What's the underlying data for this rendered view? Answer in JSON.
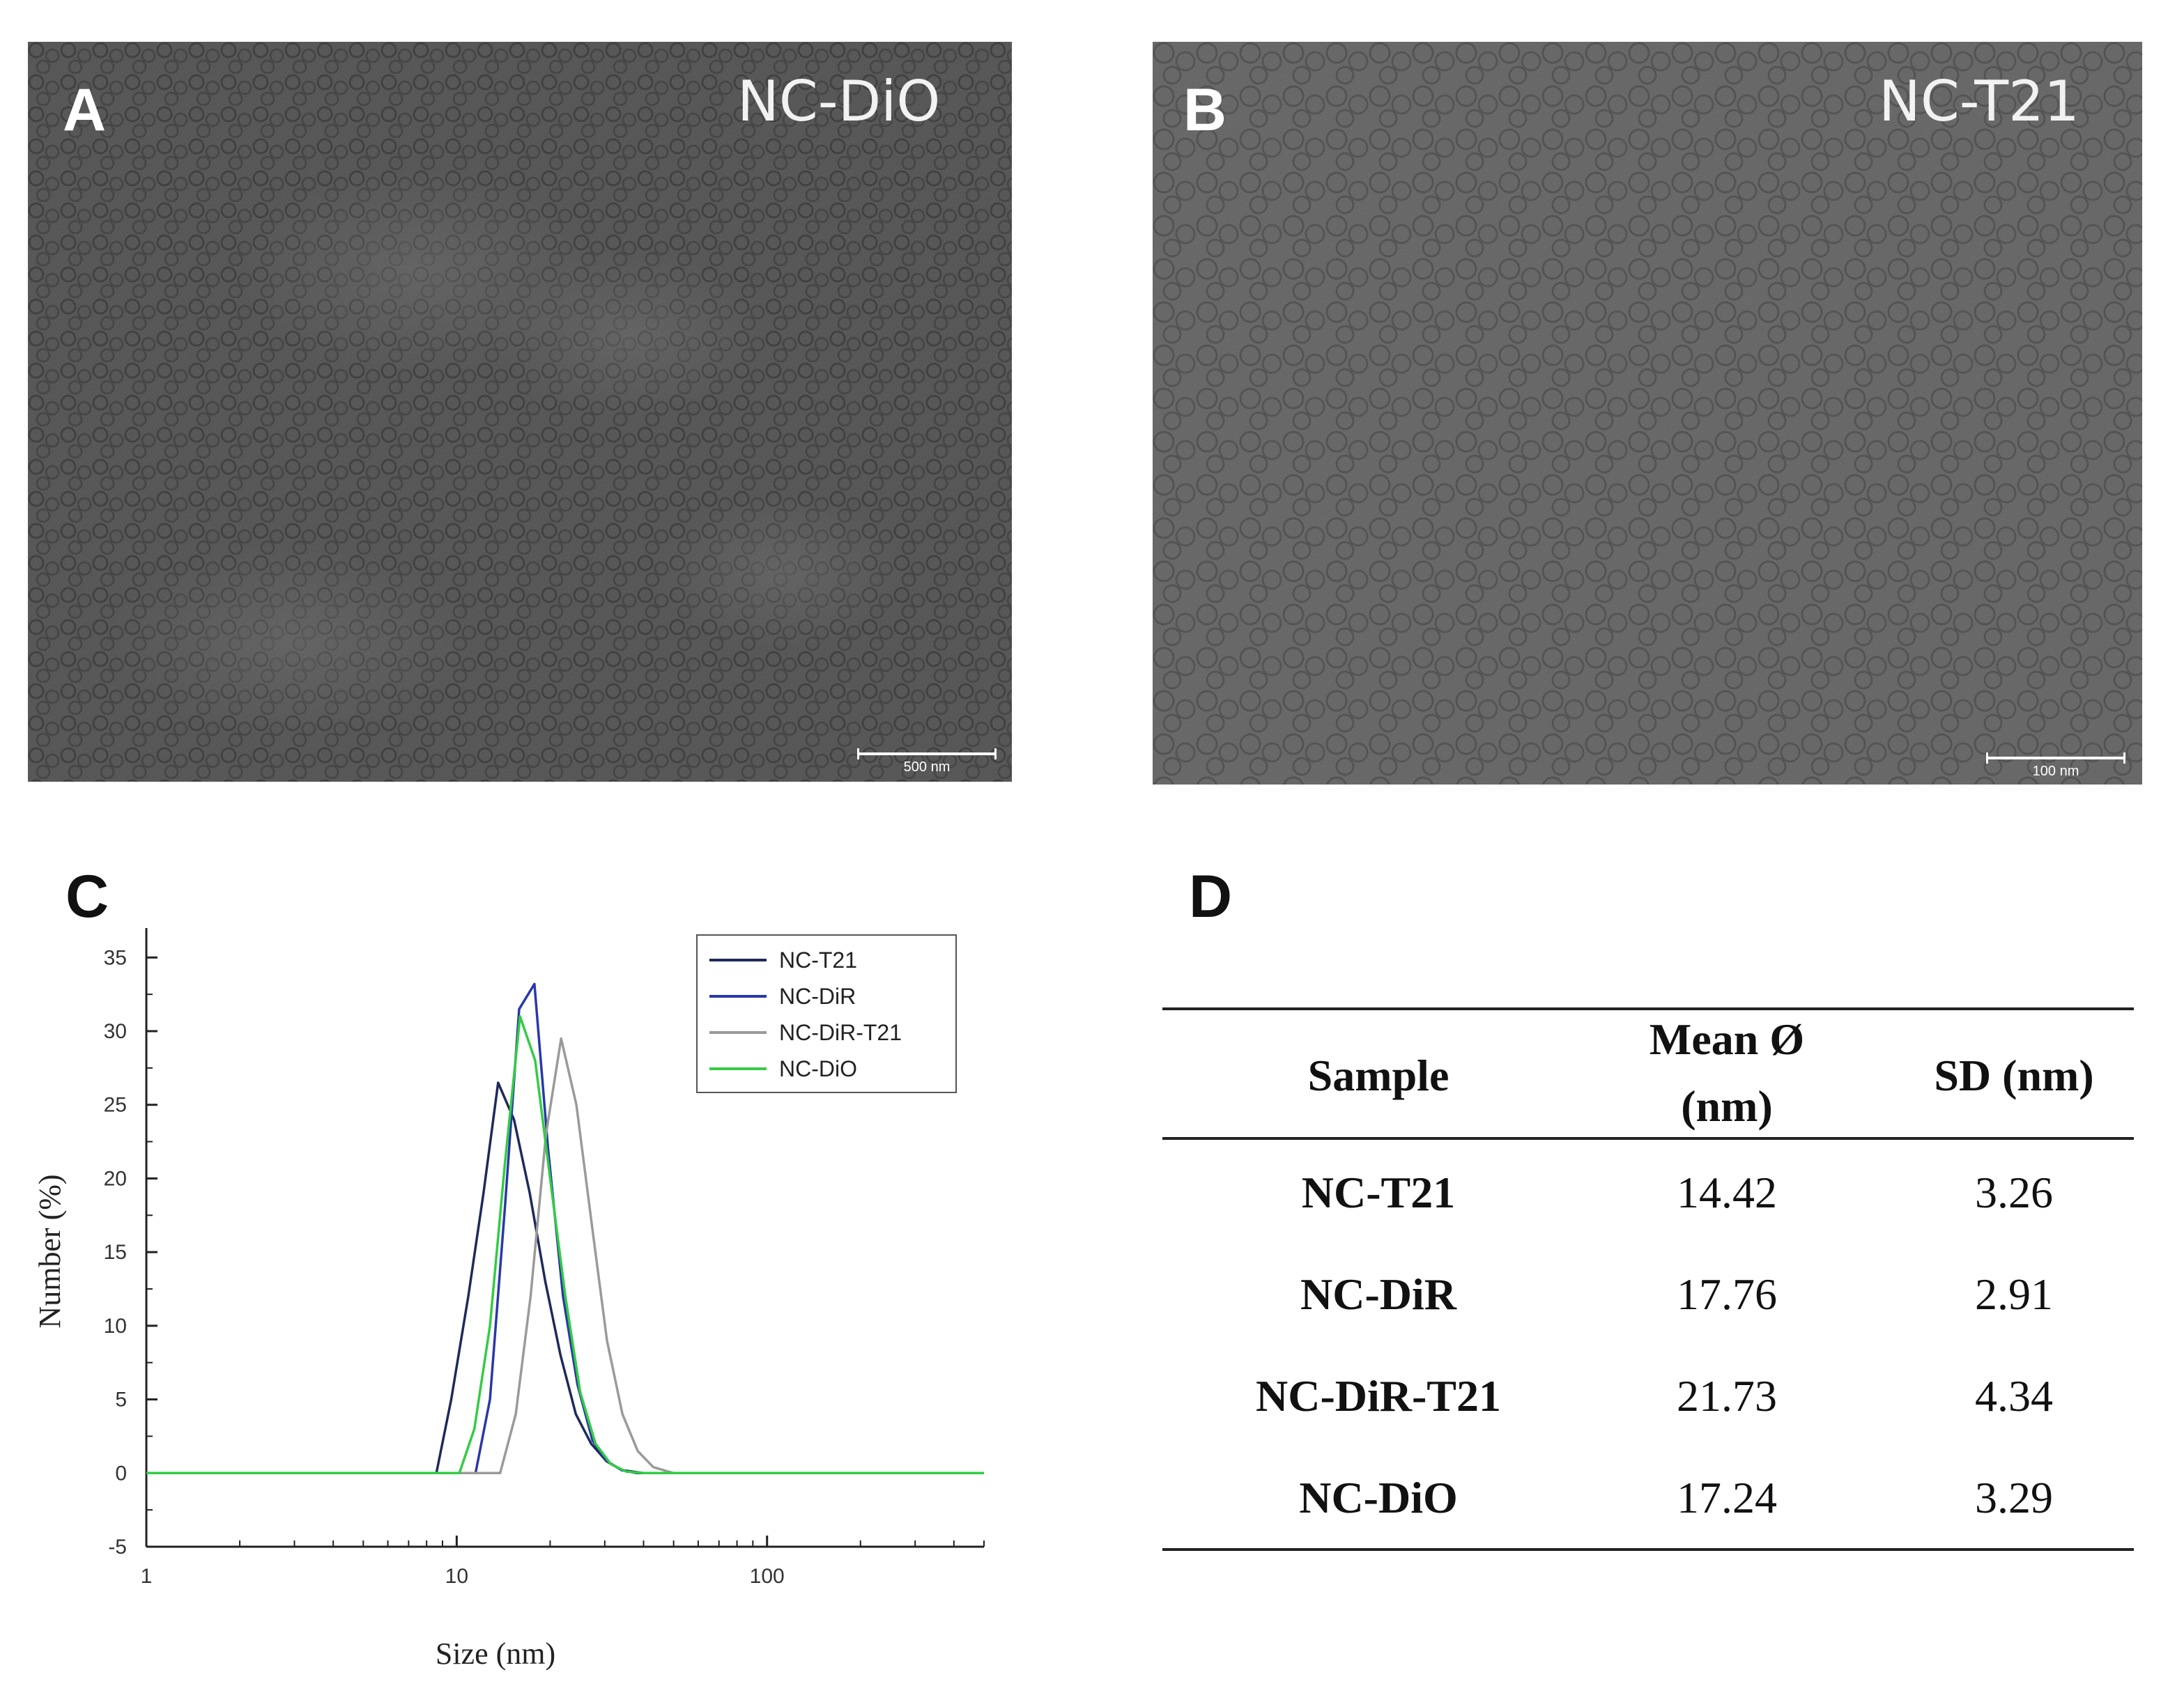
{
  "panels": {
    "a": {
      "letter": "A",
      "title": "NC-DiO",
      "scale_label": "500 nm"
    },
    "b": {
      "letter": "B",
      "title": "NC-T21",
      "scale_label": "100 nm"
    },
    "c": {
      "letter": "C"
    },
    "d": {
      "letter": "D"
    }
  },
  "chart_data": {
    "type": "line",
    "xscale": "log",
    "xlabel": "Size (nm)",
    "ylabel": "Number (%)",
    "xlim": [
      1,
      500
    ],
    "ylim": [
      -5,
      37
    ],
    "x_ticks": [
      1,
      10,
      100
    ],
    "x_tick_labels": [
      "1",
      "10",
      "100"
    ],
    "y_ticks": [
      -5,
      0,
      5,
      10,
      15,
      20,
      25,
      30,
      35
    ],
    "y_tick_labels": [
      "-5",
      "0",
      "5",
      "10",
      "15",
      "20",
      "25",
      "30",
      "35"
    ],
    "legend_position": "top-right",
    "series": [
      {
        "name": "NC-T21",
        "color": "#1e2a5a",
        "x": [
          1,
          8.6,
          9.6,
          10.9,
          12.2,
          13.6,
          15.3,
          17.2,
          19.3,
          21.6,
          24.2,
          27.1,
          30.4,
          34.1,
          40,
          500
        ],
        "y": [
          0,
          0,
          5,
          12,
          19,
          26.5,
          24,
          19,
          13,
          8,
          4,
          2,
          0.8,
          0.2,
          0,
          0
        ]
      },
      {
        "name": "NC-DiR",
        "color": "#2a38a8",
        "x": [
          1,
          11.5,
          12.8,
          14.3,
          15.9,
          17.8,
          19.7,
          22,
          24.5,
          27.4,
          30.5,
          34,
          38,
          500
        ],
        "y": [
          0,
          0,
          5,
          18,
          31.5,
          33.2,
          22,
          12,
          6,
          2.2,
          0.8,
          0.2,
          0,
          0
        ]
      },
      {
        "name": "NC-DiR-T21",
        "color": "#9a9a9a",
        "x": [
          1,
          13.8,
          15.5,
          17.3,
          19.4,
          21.7,
          24.3,
          27.2,
          30.5,
          34.2,
          38.3,
          43,
          50,
          500
        ],
        "y": [
          0,
          0,
          4,
          12,
          23,
          29.5,
          25,
          17,
          9,
          4,
          1.5,
          0.4,
          0,
          0
        ]
      },
      {
        "name": "NC-DiO",
        "color": "#33cc44",
        "x": [
          1,
          10.2,
          11.4,
          12.8,
          14.3,
          16,
          17.9,
          20,
          22.4,
          25,
          28,
          31.4,
          35.2,
          40,
          500
        ],
        "y": [
          0,
          0,
          3,
          10,
          21,
          31,
          28,
          20,
          12,
          5.5,
          2,
          0.6,
          0.1,
          0,
          0
        ]
      }
    ]
  },
  "table": {
    "headers": [
      "Sample",
      "Mean Ø\n(nm)",
      "SD (nm)"
    ],
    "header_sample": "Sample",
    "header_mean_1": "Mean Ø",
    "header_mean_2": "(nm)",
    "header_sd": "SD (nm)",
    "rows": [
      {
        "sample": "NC-T21",
        "mean": "14.42",
        "sd": "3.26"
      },
      {
        "sample": "NC-DiR",
        "mean": "17.76",
        "sd": "2.91"
      },
      {
        "sample": "NC-DiR-T21",
        "mean": "21.73",
        "sd": "4.34"
      },
      {
        "sample": "NC-DiO",
        "mean": "17.24",
        "sd": "3.29"
      }
    ]
  }
}
